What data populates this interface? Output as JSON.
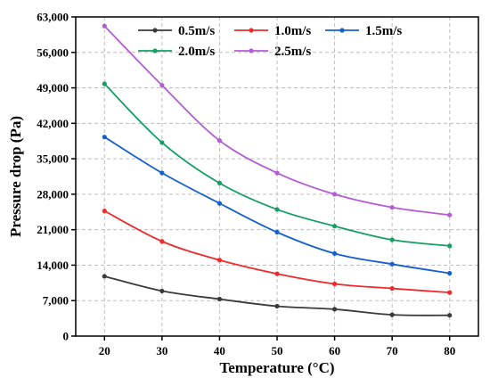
{
  "chart_data": {
    "type": "line",
    "xlabel": "Temperature (°C)",
    "ylabel": "Pressure drop (Pa)",
    "x": [
      20,
      30,
      40,
      50,
      60,
      70,
      80
    ],
    "xlim": [
      15,
      85
    ],
    "ylim": [
      0,
      63000
    ],
    "xticks": [
      "20",
      "30",
      "40",
      "50",
      "60",
      "70",
      "80"
    ],
    "yticks": [
      "0",
      "7,000",
      "14,000",
      "21,000",
      "28,000",
      "35,000",
      "42,000",
      "49,000",
      "56,000",
      "63,000"
    ],
    "ytick_values": [
      0,
      7000,
      14000,
      21000,
      28000,
      35000,
      42000,
      49000,
      56000,
      63000
    ],
    "grid": true,
    "legend_position": "top",
    "series": [
      {
        "name": "0.5m/s",
        "color": "#3a3a3a",
        "values": [
          11800,
          8900,
          7300,
          5900,
          5300,
          4200,
          4100
        ]
      },
      {
        "name": "1.0m/s",
        "color": "#ee2a2a",
        "values": [
          24700,
          18700,
          15000,
          12300,
          10300,
          9400,
          8600
        ]
      },
      {
        "name": "1.5m/s",
        "color": "#1560cf",
        "values": [
          39300,
          32200,
          26200,
          20500,
          16300,
          14200,
          12400
        ]
      },
      {
        "name": "2.0m/s",
        "color": "#159f63",
        "values": [
          49800,
          38200,
          30200,
          25000,
          21700,
          19000,
          17800
        ]
      },
      {
        "name": "2.5m/s",
        "color": "#b45cd6",
        "values": [
          61200,
          49500,
          38600,
          32200,
          28000,
          25400,
          23900
        ]
      }
    ]
  }
}
